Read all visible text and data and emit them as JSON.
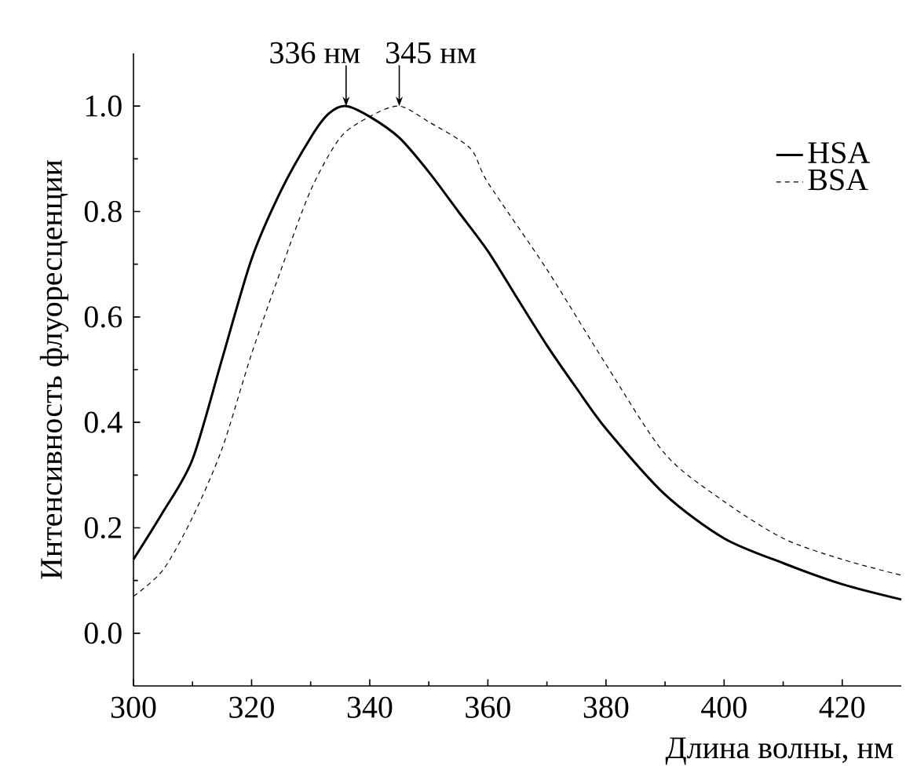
{
  "chart_data": {
    "type": "line",
    "xlabel": "Длина волны, нм",
    "ylabel": "Интенсивность флуоресценции",
    "xlim": [
      300,
      430
    ],
    "xticks": [
      300,
      320,
      340,
      360,
      380,
      400,
      420
    ],
    "ylim": [
      -0.1,
      1.1
    ],
    "yticks": [
      {
        "value": 0,
        "label": "0.0"
      },
      0.2,
      0.4,
      0.6,
      0.8,
      {
        "value": 1,
        "label": "1.0"
      }
    ],
    "legend": "top right",
    "grid": false,
    "annotations": [
      {
        "text": "336 нм",
        "x": 336,
        "y": 1.0
      },
      {
        "text": "345 нм",
        "x": 345,
        "y": 1.0
      }
    ],
    "series": [
      {
        "name": "HSA",
        "color": "#000000",
        "line_style": "solid",
        "x": [
          300,
          305,
          310,
          315,
          320,
          325,
          330,
          333,
          336,
          340,
          345,
          350,
          355,
          360,
          365,
          370,
          375,
          380,
          390,
          400,
          410,
          420,
          430
        ],
        "values": [
          0.14,
          0.23,
          0.33,
          0.52,
          0.71,
          0.84,
          0.94,
          0.985,
          1.0,
          0.98,
          0.94,
          0.875,
          0.8,
          0.725,
          0.635,
          0.546,
          0.465,
          0.388,
          0.263,
          0.18,
          0.133,
          0.093,
          0.064
        ]
      },
      {
        "name": "BSA",
        "color": "#000000",
        "line_style": "dashed",
        "x": [
          300,
          305,
          310,
          315,
          320,
          325,
          330,
          335,
          340,
          345,
          350,
          357,
          360,
          370,
          380,
          390,
          400,
          410,
          420,
          430
        ],
        "values": [
          0.07,
          0.12,
          0.22,
          0.35,
          0.53,
          0.69,
          0.84,
          0.94,
          0.98,
          1.0,
          0.97,
          0.92,
          0.855,
          0.69,
          0.51,
          0.34,
          0.25,
          0.18,
          0.14,
          0.11
        ]
      }
    ]
  }
}
